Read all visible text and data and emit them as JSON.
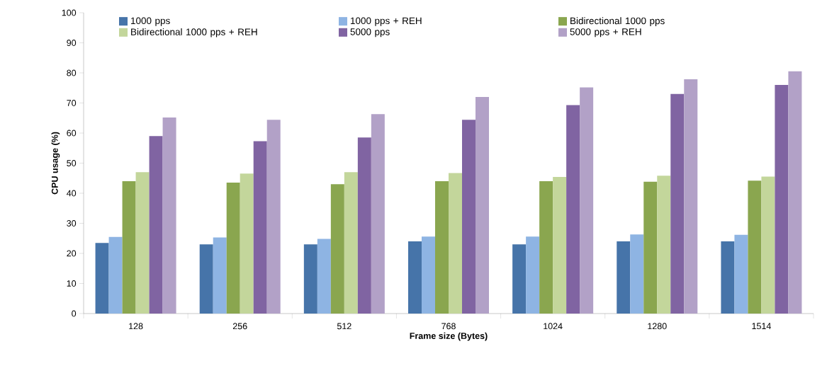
{
  "chart_data": {
    "type": "bar",
    "xlabel": "Frame size (Bytes)",
    "ylabel": "CPU usage (%)",
    "categories": [
      "128",
      "256",
      "512",
      "768",
      "1024",
      "1280",
      "1514"
    ],
    "series": [
      {
        "name": "1000 pps",
        "color": "#4674a9",
        "values": [
          23.5,
          23,
          23,
          24,
          23,
          24,
          24
        ]
      },
      {
        "name": "1000 pps + REH",
        "color": "#8eb4e3",
        "values": [
          25.5,
          25.3,
          24.8,
          25.6,
          25.6,
          26.3,
          26.2
        ]
      },
      {
        "name": "Bidirectional  1000 pps",
        "color": "#8aa64f",
        "values": [
          44,
          43.5,
          43,
          44,
          44,
          43.8,
          44.2
        ]
      },
      {
        "name": "Bidirectional  1000 pps + REH",
        "color": "#c3d69b",
        "values": [
          47,
          46.5,
          47,
          46.7,
          45.4,
          45.8,
          45.5
        ]
      },
      {
        "name": "5000 pps",
        "color": "#8064a2",
        "values": [
          59,
          57.3,
          58.5,
          64.4,
          69.3,
          73,
          76
        ]
      },
      {
        "name": "5000 pps + REH",
        "color": "#b2a1c7",
        "values": [
          65.2,
          64.4,
          66.3,
          72,
          75.2,
          77.9,
          80.5
        ]
      }
    ],
    "ylim": [
      0,
      100
    ],
    "yticks": [
      0,
      10,
      20,
      30,
      40,
      50,
      60,
      70,
      80,
      90,
      100
    ],
    "legend": "top"
  }
}
